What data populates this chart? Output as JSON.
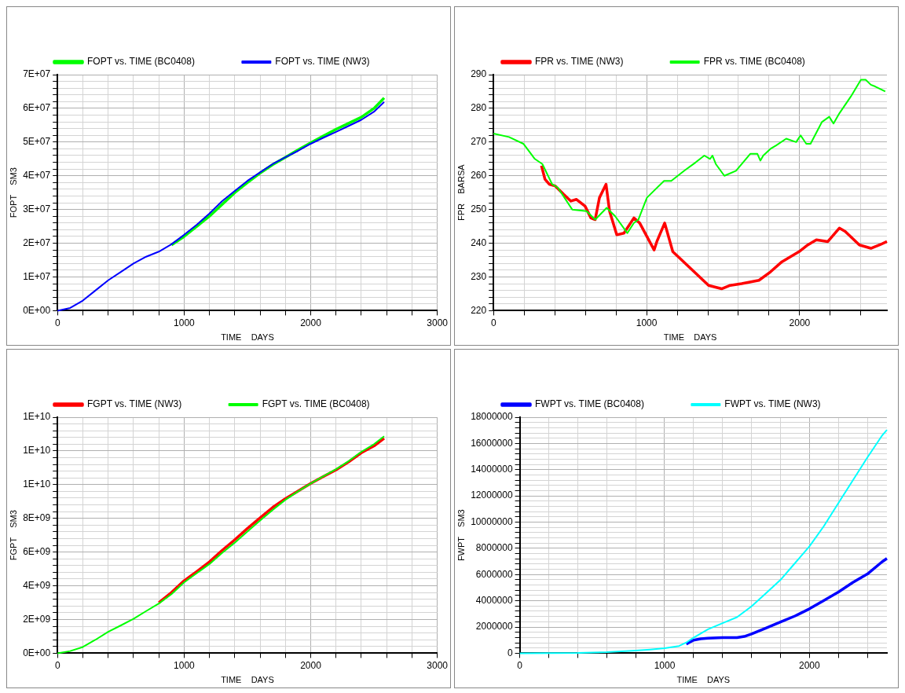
{
  "chart_data": [
    {
      "type": "line",
      "xlabel": "TIME    DAYS",
      "ylabel": "FOPT    SM3",
      "legend": "top left",
      "grid": true,
      "xlim": [
        0,
        3000
      ],
      "xticks": [
        0,
        {
          "value": 200,
          "label": null
        },
        {
          "value": 400,
          "label": null
        },
        {
          "value": 600,
          "label": null
        },
        {
          "value": 800,
          "label": null
        },
        1000,
        {
          "value": 1200,
          "label": null
        },
        {
          "value": 1400,
          "label": null
        },
        {
          "value": 1600,
          "label": null
        },
        {
          "value": 1800,
          "label": null
        },
        2000,
        {
          "value": 2200,
          "label": null
        },
        {
          "value": 2400,
          "label": null
        },
        {
          "value": 2600,
          "label": null
        },
        {
          "value": 2800,
          "label": null
        },
        3000
      ],
      "ylim": [
        0,
        70000000.0
      ],
      "yticks": [
        {
          "value": 0,
          "label": "0E+00"
        },
        {
          "value": 2000000.0,
          "label": null
        },
        {
          "value": 4000000.0,
          "label": null
        },
        {
          "value": 6000000.0,
          "label": null
        },
        {
          "value": 8000000.0,
          "label": null
        },
        {
          "value": 10000000.0,
          "label": "1E+07"
        },
        {
          "value": 12000000.0,
          "label": null
        },
        {
          "value": 14000000.0,
          "label": null
        },
        {
          "value": 16000000.0,
          "label": null
        },
        {
          "value": 18000000.0,
          "label": null
        },
        {
          "value": 20000000.0,
          "label": "2E+07"
        },
        {
          "value": 22000000.0,
          "label": null
        },
        {
          "value": 24000000.0,
          "label": null
        },
        {
          "value": 26000000.0,
          "label": null
        },
        {
          "value": 28000000.0,
          "label": null
        },
        {
          "value": 30000000.0,
          "label": "3E+07"
        },
        {
          "value": 32000000.0,
          "label": null
        },
        {
          "value": 34000000.0,
          "label": null
        },
        {
          "value": 36000000.0,
          "label": null
        },
        {
          "value": 38000000.0,
          "label": null
        },
        {
          "value": 40000000.0,
          "label": "4E+07"
        },
        {
          "value": 42000000.0,
          "label": null
        },
        {
          "value": 44000000.0,
          "label": null
        },
        {
          "value": 46000000.0,
          "label": null
        },
        {
          "value": 48000000.0,
          "label": null
        },
        {
          "value": 50000000.0,
          "label": "5E+07"
        },
        {
          "value": 52000000.0,
          "label": null
        },
        {
          "value": 54000000.0,
          "label": null
        },
        {
          "value": 56000000.0,
          "label": null
        },
        {
          "value": 58000000.0,
          "label": null
        },
        {
          "value": 60000000.0,
          "label": "6E+07"
        },
        {
          "value": 62000000.0,
          "label": null
        },
        {
          "value": 64000000.0,
          "label": null
        },
        {
          "value": 66000000.0,
          "label": null
        },
        {
          "value": 68000000.0,
          "label": null
        },
        {
          "value": 70000000.0,
          "label": "7E+07"
        }
      ],
      "series": [
        {
          "name": "FOPT vs. TIME (BC0408)",
          "color": "#00ff00",
          "x": [
            900,
            1000,
            1100,
            1200,
            1300,
            1400,
            1500,
            1600,
            1700,
            1800,
            1900,
            2000,
            2100,
            2200,
            2300,
            2400,
            2500,
            2580
          ],
          "values": [
            19500000.0,
            22000000.0,
            25000000.0,
            28000000.0,
            31500000.0,
            35000000.0,
            38000000.0,
            40800000.0,
            43300000.0,
            45500000.0,
            47700000.0,
            49800000.0,
            51800000.0,
            53800000.0,
            55600000.0,
            57400000.0,
            60000000.0,
            63100000.0
          ]
        },
        {
          "name": "FOPT vs. TIME (NW3)",
          "color": "#0000ff",
          "x": [
            0,
            100,
            200,
            300,
            400,
            500,
            600,
            700,
            800,
            900,
            1000,
            1100,
            1200,
            1300,
            1400,
            1500,
            1600,
            1700,
            1800,
            1900,
            2000,
            2100,
            2200,
            2300,
            2400,
            2500,
            2580
          ],
          "values": [
            0,
            800000.0,
            3000000.0,
            6000000.0,
            9000000.0,
            11500000.0,
            14000000.0,
            16000000.0,
            17500000.0,
            19700000.0,
            22500000.0,
            25500000.0,
            28800000.0,
            32500000.0,
            35500000.0,
            38500000.0,
            41000000.0,
            43500000.0,
            45500000.0,
            47400000.0,
            49500000.0,
            51300000.0,
            53000000.0,
            54800000.0,
            56600000.0,
            59000000.0,
            61900000.0
          ]
        }
      ]
    },
    {
      "type": "line",
      "xlabel": "TIME    DAYS",
      "ylabel": "FPR    BARSA",
      "legend": "top left",
      "grid": true,
      "xlim": [
        0,
        2570
      ],
      "xticks": [
        0,
        {
          "value": 200,
          "label": null
        },
        {
          "value": 400,
          "label": null
        },
        {
          "value": 600,
          "label": null
        },
        {
          "value": 800,
          "label": null
        },
        1000,
        {
          "value": 1200,
          "label": null
        },
        {
          "value": 1400,
          "label": null
        },
        {
          "value": 1600,
          "label": null
        },
        {
          "value": 1800,
          "label": null
        },
        2000,
        {
          "value": 2200,
          "label": null
        },
        {
          "value": 2400,
          "label": null
        }
      ],
      "ylim": [
        220,
        290
      ],
      "yticks": [
        220,
        {
          "value": 222,
          "label": null
        },
        {
          "value": 224,
          "label": null
        },
        {
          "value": 226,
          "label": null
        },
        {
          "value": 228,
          "label": null
        },
        230,
        {
          "value": 232,
          "label": null
        },
        {
          "value": 234,
          "label": null
        },
        {
          "value": 236,
          "label": null
        },
        {
          "value": 238,
          "label": null
        },
        240,
        {
          "value": 242,
          "label": null
        },
        {
          "value": 244,
          "label": null
        },
        {
          "value": 246,
          "label": null
        },
        {
          "value": 248,
          "label": null
        },
        250,
        {
          "value": 252,
          "label": null
        },
        {
          "value": 254,
          "label": null
        },
        {
          "value": 256,
          "label": null
        },
        {
          "value": 258,
          "label": null
        },
        260,
        {
          "value": 262,
          "label": null
        },
        {
          "value": 264,
          "label": null
        },
        {
          "value": 266,
          "label": null
        },
        {
          "value": 268,
          "label": null
        },
        270,
        {
          "value": 272,
          "label": null
        },
        {
          "value": 274,
          "label": null
        },
        {
          "value": 276,
          "label": null
        },
        {
          "value": 278,
          "label": null
        },
        280,
        {
          "value": 282,
          "label": null
        },
        {
          "value": 284,
          "label": null
        },
        {
          "value": 286,
          "label": null
        },
        {
          "value": 288,
          "label": null
        },
        290
      ],
      "series": [
        {
          "name": "FPR vs. TIME (NW3)",
          "color": "#ff0000",
          "x": [
            313,
            336,
            364,
            402,
            458,
            505,
            542,
            598,
            636,
            664,
            692,
            735,
            758,
            805,
            852,
            917,
            955,
            1049,
            1067,
            1118,
            1171,
            1265,
            1405,
            1490,
            1546,
            1621,
            1734,
            1809,
            1884,
            1996,
            2053,
            2109,
            2184,
            2259,
            2297,
            2390,
            2465,
            2522,
            2570
          ],
          "values": [
            263,
            259,
            257.5,
            257,
            254.5,
            252.5,
            253,
            251,
            247.5,
            247,
            253.5,
            257.5,
            249.5,
            242.5,
            243,
            247.5,
            246,
            238,
            240.5,
            246,
            237.5,
            233.5,
            227.5,
            226.5,
            227.5,
            228,
            229,
            231.5,
            234.5,
            237.5,
            239.5,
            241,
            240.5,
            244.5,
            243.5,
            239.5,
            238.5,
            239.5,
            240.5
          ]
        },
        {
          "name": "FPR vs. TIME (BC0408)",
          "color": "#00ff00",
          "x": [
            0,
            101,
            195,
            270,
            319,
            383,
            420,
            514,
            608,
            664,
            739,
            795,
            874,
            917,
            946,
            1002,
            1058,
            1114,
            1161,
            1246,
            1321,
            1377,
            1415,
            1430,
            1452,
            1508,
            1584,
            1677,
            1724,
            1743,
            1762,
            1809,
            1846,
            1912,
            1977,
            2006,
            2043,
            2071,
            2146,
            2193,
            2221,
            2259,
            2334,
            2400,
            2431,
            2465,
            2493,
            2559
          ],
          "values": [
            272.5,
            271.5,
            269.5,
            265,
            263.5,
            257.5,
            256.5,
            250,
            249.5,
            247,
            250.5,
            248,
            243,
            246,
            247,
            253.5,
            256,
            258.5,
            258.5,
            261.5,
            264,
            266,
            265,
            266,
            263.5,
            260,
            261.5,
            266.5,
            266.5,
            264.5,
            266,
            268,
            269,
            271,
            270,
            272,
            269.5,
            269.5,
            276,
            277.5,
            275.5,
            278.5,
            283.5,
            288.5,
            288.5,
            287,
            286.5,
            285
          ]
        }
      ]
    },
    {
      "type": "line",
      "xlabel": "TIME    DAYS",
      "ylabel": "FGPT    SM3",
      "legend": "top left",
      "grid": true,
      "xlim": [
        0,
        3000
      ],
      "xticks": [
        0,
        {
          "value": 200,
          "label": null
        },
        {
          "value": 400,
          "label": null
        },
        {
          "value": 600,
          "label": null
        },
        {
          "value": 800,
          "label": null
        },
        1000,
        {
          "value": 1200,
          "label": null
        },
        {
          "value": 1400,
          "label": null
        },
        {
          "value": 1600,
          "label": null
        },
        {
          "value": 1800,
          "label": null
        },
        2000,
        {
          "value": 2200,
          "label": null
        },
        {
          "value": 2400,
          "label": null
        },
        {
          "value": 2600,
          "label": null
        },
        {
          "value": 2800,
          "label": null
        },
        3000
      ],
      "ylim": [
        0,
        14000000000.0
      ],
      "yticks": [
        {
          "value": 0,
          "label": "0E+00"
        },
        {
          "value": 400000000.0,
          "label": null
        },
        {
          "value": 800000000.0,
          "label": null
        },
        {
          "value": 1200000000.0,
          "label": null
        },
        {
          "value": 1600000000.0,
          "label": null
        },
        {
          "value": 2000000000.0,
          "label": "2E+09"
        },
        {
          "value": 2400000000.0,
          "label": null
        },
        {
          "value": 2800000000.0,
          "label": null
        },
        {
          "value": 3200000000.0,
          "label": null
        },
        {
          "value": 3600000000.0,
          "label": null
        },
        {
          "value": 4000000000.0,
          "label": "4E+09"
        },
        {
          "value": 4400000000.0,
          "label": null
        },
        {
          "value": 4800000000.0,
          "label": null
        },
        {
          "value": 5200000000.0,
          "label": null
        },
        {
          "value": 5600000000.0,
          "label": null
        },
        {
          "value": 6000000000.0,
          "label": "6E+09"
        },
        {
          "value": 6400000000.0,
          "label": null
        },
        {
          "value": 6800000000.0,
          "label": null
        },
        {
          "value": 7200000000.0,
          "label": null
        },
        {
          "value": 7600000000.0,
          "label": null
        },
        {
          "value": 8000000000.0,
          "label": "8E+09"
        },
        {
          "value": 8400000000.0,
          "label": null
        },
        {
          "value": 8800000000.0,
          "label": null
        },
        {
          "value": 9200000000.0,
          "label": null
        },
        {
          "value": 9600000000.0,
          "label": null
        },
        {
          "value": 10000000000.0,
          "label": "1E+10"
        },
        {
          "value": 10400000000.0,
          "label": null
        },
        {
          "value": 10800000000.0,
          "label": null
        },
        {
          "value": 11200000000.0,
          "label": null
        },
        {
          "value": 11600000000.0,
          "label": null
        },
        {
          "value": 12000000000.0,
          "label": "1E+10"
        },
        {
          "value": 12400000000.0,
          "label": null
        },
        {
          "value": 12800000000.0,
          "label": null
        },
        {
          "value": 13200000000.0,
          "label": null
        },
        {
          "value": 13600000000.0,
          "label": null
        },
        {
          "value": 14000000000.0,
          "label": "1E+10"
        }
      ],
      "series": [
        {
          "name": "FGPT vs. TIME (NW3)",
          "color": "#ff0000",
          "x": [
            800,
            900,
            1000,
            1100,
            1200,
            1300,
            1400,
            1500,
            1600,
            1700,
            1800,
            1900,
            2000,
            2100,
            2200,
            2300,
            2400,
            2500,
            2580
          ],
          "values": [
            3000000000.0,
            3600000000.0,
            4300000000.0,
            4850000000.0,
            5420000000.0,
            6100000000.0,
            6730000000.0,
            7400000000.0,
            8030000000.0,
            8650000000.0,
            9170000000.0,
            9620000000.0,
            10070000000.0,
            10480000000.0,
            10880000000.0,
            11350000000.0,
            11890000000.0,
            12300000000.0,
            12750000000.0
          ]
        },
        {
          "name": "FGPT vs. TIME (BC0408)",
          "color": "#00ff00",
          "x": [
            0,
            100,
            200,
            300,
            400,
            500,
            600,
            700,
            800,
            900,
            1000,
            1100,
            1200,
            1300,
            1400,
            1500,
            1600,
            1700,
            1800,
            1900,
            2000,
            2100,
            2200,
            2300,
            2400,
            2500,
            2580
          ],
          "values": [
            0,
            130000000.0,
            370000000.0,
            800000000.0,
            1270000000.0,
            1650000000.0,
            2040000000.0,
            2500000000.0,
            2950000000.0,
            3500000000.0,
            4200000000.0,
            4750000000.0,
            5290000000.0,
            5950000000.0,
            6560000000.0,
            7220000000.0,
            7870000000.0,
            8500000000.0,
            9100000000.0,
            9600000000.0,
            10070000000.0,
            10500000000.0,
            10920000000.0,
            11400000000.0,
            11950000000.0,
            12400000000.0,
            12870000000.0
          ]
        }
      ]
    },
    {
      "type": "line",
      "xlabel": "TIME    DAYS",
      "ylabel": "FWPT    SM3",
      "legend": "top left",
      "grid": true,
      "xlim": [
        0,
        2535
      ],
      "xticks": [
        0,
        {
          "value": 200,
          "label": null
        },
        {
          "value": 400,
          "label": null
        },
        {
          "value": 600,
          "label": null
        },
        {
          "value": 800,
          "label": null
        },
        1000,
        {
          "value": 1200,
          "label": null
        },
        {
          "value": 1400,
          "label": null
        },
        {
          "value": 1600,
          "label": null
        },
        {
          "value": 1800,
          "label": null
        },
        2000,
        {
          "value": 2200,
          "label": null
        },
        {
          "value": 2400,
          "label": null
        }
      ],
      "ylim": [
        0,
        18000000
      ],
      "yticks": [
        0,
        {
          "value": 400000,
          "label": null
        },
        {
          "value": 800000,
          "label": null
        },
        {
          "value": 1200000,
          "label": null
        },
        {
          "value": 1600000,
          "label": null
        },
        2000000,
        {
          "value": 2400000,
          "label": null
        },
        {
          "value": 2800000,
          "label": null
        },
        {
          "value": 3200000,
          "label": null
        },
        {
          "value": 3600000,
          "label": null
        },
        4000000,
        {
          "value": 4400000,
          "label": null
        },
        {
          "value": 4800000,
          "label": null
        },
        {
          "value": 5200000,
          "label": null
        },
        {
          "value": 5600000,
          "label": null
        },
        6000000,
        {
          "value": 6400000,
          "label": null
        },
        {
          "value": 6800000,
          "label": null
        },
        {
          "value": 7200000,
          "label": null
        },
        {
          "value": 7600000,
          "label": null
        },
        8000000,
        {
          "value": 8400000,
          "label": null
        },
        {
          "value": 8800000,
          "label": null
        },
        {
          "value": 9200000,
          "label": null
        },
        {
          "value": 9600000,
          "label": null
        },
        10000000,
        {
          "value": 10400000,
          "label": null
        },
        {
          "value": 10800000,
          "label": null
        },
        {
          "value": 11200000,
          "label": null
        },
        {
          "value": 11600000,
          "label": null
        },
        12000000,
        {
          "value": 12400000,
          "label": null
        },
        {
          "value": 12800000,
          "label": null
        },
        {
          "value": 13200000,
          "label": null
        },
        {
          "value": 13600000,
          "label": null
        },
        14000000,
        {
          "value": 14400000,
          "label": null
        },
        {
          "value": 14800000,
          "label": null
        },
        {
          "value": 15200000,
          "label": null
        },
        {
          "value": 15600000,
          "label": null
        },
        16000000,
        {
          "value": 16400000,
          "label": null
        },
        {
          "value": 16800000,
          "label": null
        },
        {
          "value": 17200000,
          "label": null
        },
        {
          "value": 17600000,
          "label": null
        },
        18000000
      ],
      "series": [
        {
          "name": "FWPT vs. TIME (BC0408)",
          "color": "#0000ff",
          "x": [
            1150,
            1200,
            1250,
            1300,
            1400,
            1500,
            1550,
            1600,
            1700,
            1800,
            1900,
            2000,
            2100,
            2200,
            2300,
            2400,
            2500,
            2535
          ],
          "values": [
            700000,
            1000000,
            1100000,
            1150000,
            1190000,
            1190000,
            1280000,
            1470000,
            1920000,
            2380000,
            2840000,
            3390000,
            4030000,
            4670000,
            5400000,
            6040000,
            6960000,
            7230000
          ]
        },
        {
          "name": "FWPT vs. TIME (NW3)",
          "color": "#00ffff",
          "x": [
            0,
            400,
            600,
            800,
            900,
            1000,
            1100,
            1150,
            1200,
            1300,
            1400,
            1500,
            1600,
            1700,
            1800,
            1900,
            2000,
            2100,
            2200,
            2300,
            2400,
            2500,
            2535
          ],
          "values": [
            0,
            20000,
            80000,
            200000,
            280000,
            380000,
            550000,
            820000,
            1190000,
            1830000,
            2290000,
            2750000,
            3570000,
            4580000,
            5590000,
            6870000,
            8150000,
            9700000,
            11450000,
            13190000,
            14930000,
            16580000,
            17030000
          ]
        }
      ]
    }
  ]
}
